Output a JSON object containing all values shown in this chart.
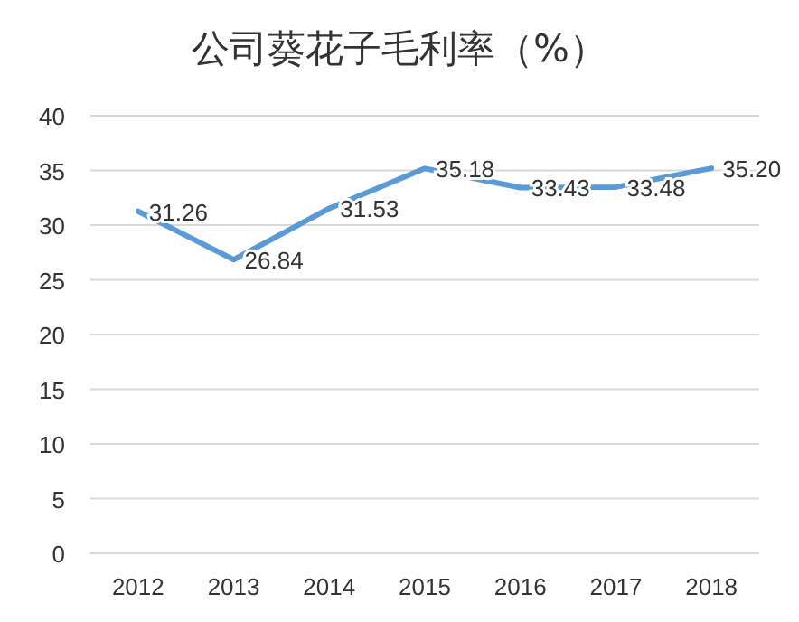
{
  "chart_data": {
    "type": "line",
    "title": "公司葵花子毛利率（%）",
    "categories": [
      "2012",
      "2013",
      "2014",
      "2015",
      "2016",
      "2017",
      "2018"
    ],
    "series": [
      {
        "color": "#5b9bd5",
        "values": [
          31.26,
          26.84,
          31.53,
          35.18,
          33.43,
          33.48,
          35.2
        ],
        "value_labels": [
          "31.26",
          "26.84",
          "31.53",
          "35.18",
          "33.43",
          "33.48",
          "35.20"
        ]
      }
    ],
    "ylim": [
      0,
      40
    ],
    "yticks": [
      0,
      5,
      10,
      15,
      20,
      25,
      30,
      35,
      40
    ],
    "grid": "y",
    "marker": "none",
    "line_style": "solid"
  }
}
